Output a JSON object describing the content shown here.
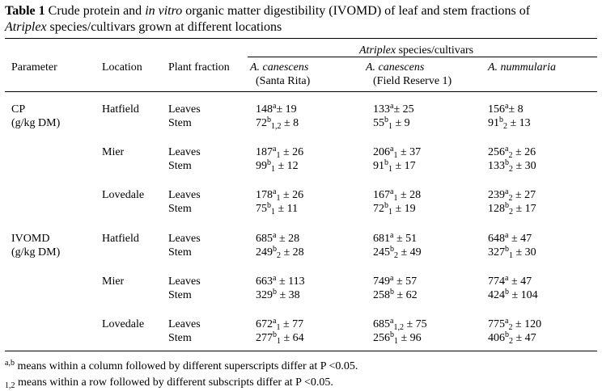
{
  "caption": {
    "label": "Table 1",
    "text_a": " Crude protein and ",
    "text_it": "in vitro",
    "text_b": " organic matter digestibility (IVOMD) of leaf and stem fractions of ",
    "genus": "Atriplex",
    "text_c": " species/cultivars grown at different locations"
  },
  "header": {
    "group_genus": "Atriplex",
    "group_rest": " species/cultivars",
    "parameter": "Parameter",
    "location": "Location",
    "plant_fraction": "Plant fraction",
    "col1_species": "A. canescens",
    "col1_sub": "(Santa Rita)",
    "col2_species": "A. canescens",
    "col2_sub": "(Field Reserve 1)",
    "col3_species": "A. nummularia"
  },
  "sections": [
    {
      "param": "CP",
      "param_unit": "(g/kg DM)",
      "locations": [
        {
          "name": "Hatfield",
          "rows": [
            {
              "fraction": "Leaves",
              "cells": [
                {
                  "v": "148",
                  "sup": "a",
                  "sub": "",
                  "sd": "± 19"
                },
                {
                  "v": "133",
                  "sup": "a",
                  "sub": "",
                  "sd": "± 25"
                },
                {
                  "v": "156",
                  "sup": "a",
                  "sub": "",
                  "sd": "± 8"
                }
              ]
            },
            {
              "fraction": "Stem",
              "cells": [
                {
                  "v": "72",
                  "sup": "b",
                  "sub": "1,2",
                  "sd": " ± 8"
                },
                {
                  "v": "55",
                  "sup": "b",
                  "sub": "1",
                  "sd": " ± 9"
                },
                {
                  "v": "91",
                  "sup": "b",
                  "sub": "2",
                  "sd": " ± 13"
                }
              ]
            }
          ]
        },
        {
          "name": "Mier",
          "rows": [
            {
              "fraction": "Leaves",
              "cells": [
                {
                  "v": "187",
                  "sup": "a",
                  "sub": "1",
                  "sd": " ± 26"
                },
                {
                  "v": "206",
                  "sup": "a",
                  "sub": "1",
                  "sd": " ± 37"
                },
                {
                  "v": "256",
                  "sup": "a",
                  "sub": "2",
                  "sd": " ± 26"
                }
              ]
            },
            {
              "fraction": "Stem",
              "cells": [
                {
                  "v": "99",
                  "sup": "b",
                  "sub": "1",
                  "sd": " ± 12"
                },
                {
                  "v": "91",
                  "sup": "b",
                  "sub": "1",
                  "sd": " ± 17"
                },
                {
                  "v": "133",
                  "sup": "b",
                  "sub": "2",
                  "sd": " ± 30"
                }
              ]
            }
          ]
        },
        {
          "name": "Lovedale",
          "rows": [
            {
              "fraction": "Leaves",
              "cells": [
                {
                  "v": "178",
                  "sup": "a",
                  "sub": "1",
                  "sd": " ± 26"
                },
                {
                  "v": "167",
                  "sup": "a",
                  "sub": "1",
                  "sd": " ± 28"
                },
                {
                  "v": "239",
                  "sup": "a",
                  "sub": "2",
                  "sd": " ± 27"
                }
              ]
            },
            {
              "fraction": "Stem",
              "cells": [
                {
                  "v": "75",
                  "sup": "b",
                  "sub": "1",
                  "sd": " ± 11"
                },
                {
                  "v": "72",
                  "sup": "b",
                  "sub": "1",
                  "sd": " ± 19"
                },
                {
                  "v": "128",
                  "sup": "b",
                  "sub": "2",
                  "sd": " ± 17"
                }
              ]
            }
          ]
        }
      ]
    },
    {
      "param": "IVOMD",
      "param_unit": "(g/kg DM)",
      "locations": [
        {
          "name": "Hatfield",
          "rows": [
            {
              "fraction": "Leaves",
              "cells": [
                {
                  "v": "685",
                  "sup": "a",
                  "sub": "",
                  "sd": " ± 28"
                },
                {
                  "v": "681",
                  "sup": "a",
                  "sub": "",
                  "sd": " ± 51"
                },
                {
                  "v": "648",
                  "sup": "a",
                  "sub": "",
                  "sd": " ± 47"
                }
              ]
            },
            {
              "fraction": "Stem",
              "cells": [
                {
                  "v": "249",
                  "sup": "b",
                  "sub": "2",
                  "sd": " ± 28"
                },
                {
                  "v": "245",
                  "sup": "b",
                  "sub": "2",
                  "sd": " ± 49"
                },
                {
                  "v": "327",
                  "sup": "b",
                  "sub": "1",
                  "sd": " ± 30"
                }
              ]
            }
          ]
        },
        {
          "name": "Mier",
          "rows": [
            {
              "fraction": "Leaves",
              "cells": [
                {
                  "v": "663",
                  "sup": "a",
                  "sub": "",
                  "sd": " ± 113"
                },
                {
                  "v": "749",
                  "sup": "a",
                  "sub": "",
                  "sd": " ± 57"
                },
                {
                  "v": "774",
                  "sup": "a",
                  "sub": "",
                  "sd": " ± 47"
                }
              ]
            },
            {
              "fraction": "Stem",
              "cells": [
                {
                  "v": "329",
                  "sup": "b",
                  "sub": "",
                  "sd": " ± 38"
                },
                {
                  "v": "258",
                  "sup": "b",
                  "sub": "",
                  "sd": " ± 62"
                },
                {
                  "v": "424",
                  "sup": "b",
                  "sub": "",
                  "sd": " ± 104"
                }
              ]
            }
          ]
        },
        {
          "name": "Lovedale",
          "rows": [
            {
              "fraction": "Leaves",
              "cells": [
                {
                  "v": "672",
                  "sup": "a",
                  "sub": "1",
                  "sd": " ± 77"
                },
                {
                  "v": "685",
                  "sup": "a",
                  "sub": "1,2",
                  "sd": " ± 75"
                },
                {
                  "v": "775",
                  "sup": "a",
                  "sub": "2",
                  "sd": " ± 120"
                }
              ]
            },
            {
              "fraction": "Stem",
              "cells": [
                {
                  "v": "277",
                  "sup": "b",
                  "sub": "1",
                  "sd": " ± 64"
                },
                {
                  "v": "256",
                  "sup": "b",
                  "sub": "1",
                  "sd": " ± 96"
                },
                {
                  "v": "406",
                  "sup": "b",
                  "sub": "2",
                  "sd": " ± 47"
                }
              ]
            }
          ]
        }
      ]
    }
  ],
  "footnotes": [
    {
      "mark": "a,b",
      "pos": "sup",
      "text": " means within a column followed by different superscripts differ at P <0.05."
    },
    {
      "mark": "1,2",
      "pos": "sub",
      "text": " means within a row followed by different subscripts differ at P <0.05."
    }
  ]
}
